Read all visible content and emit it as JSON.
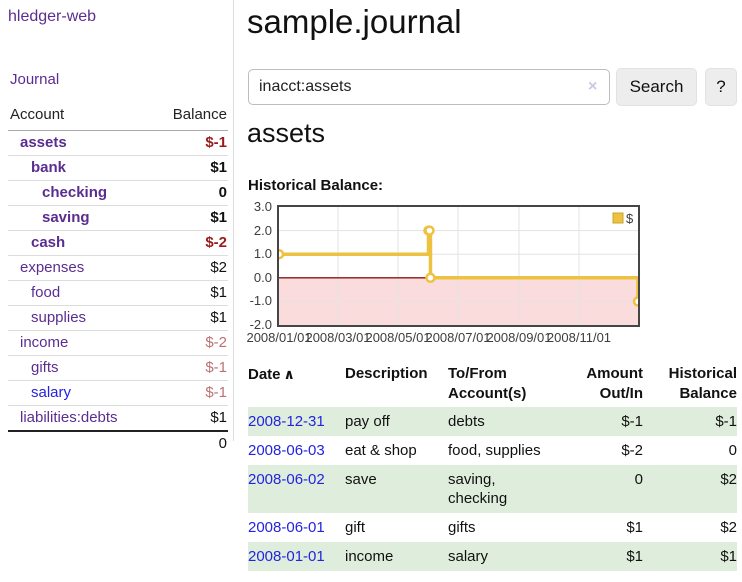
{
  "colors": {
    "link_purple": "#5b2d90",
    "link_blue": "#2323e0",
    "negative_strong": "#9b1b1b",
    "negative_soft": "#bb7272",
    "row_green": "#dfeedc",
    "series_yellow": "#edc240",
    "negative_region_pink": "#fbdcdc",
    "zero_line_red": "#8b1414"
  },
  "icons": {
    "clear": "×",
    "sort_asc": "∧"
  },
  "sidebar": {
    "brand": "hledger-web",
    "nav": [
      {
        "label": "Journal"
      }
    ],
    "accounts": {
      "headers": [
        "Account",
        "Balance"
      ],
      "rows": [
        {
          "account": "assets",
          "balance": "$-1",
          "depth": 0,
          "emph": true
        },
        {
          "account": "bank",
          "balance": "$1",
          "depth": 1,
          "emph": true
        },
        {
          "account": "checking",
          "balance": "0",
          "depth": 2,
          "emph": true
        },
        {
          "account": "saving",
          "balance": "$1",
          "depth": 2,
          "emph": true
        },
        {
          "account": "cash",
          "balance": "$-2",
          "depth": 1,
          "emph": true
        },
        {
          "account": "expenses",
          "balance": "$2",
          "depth": 0
        },
        {
          "account": "food",
          "balance": "$1",
          "depth": 1
        },
        {
          "account": "supplies",
          "balance": "$1",
          "depth": 1
        },
        {
          "account": "income",
          "balance": "$-2",
          "depth": 0
        },
        {
          "account": "gifts",
          "balance": "$-1",
          "depth": 1
        },
        {
          "account": "salary",
          "balance": "$-1",
          "depth": 1,
          "unvisited": true
        },
        {
          "account": "liabilities:debts",
          "balance": "$1",
          "depth": 0
        }
      ],
      "total": "0"
    }
  },
  "header": {
    "title": "sample.journal"
  },
  "search": {
    "value": "inacct:assets",
    "submit_label": "Search",
    "help_label": "?"
  },
  "main": {
    "account_heading": "assets",
    "section_label": "Historical Balance:"
  },
  "chart_data": {
    "type": "line",
    "step": true,
    "title": "Historical Balance",
    "x_start": "2008-01-01",
    "x_end": "2008-12-31",
    "xticks": [
      "2008/01/01",
      "2008/03/01",
      "2008/05/01",
      "2008/07/01",
      "2008/09/01",
      "2008/11/01"
    ],
    "yticks": [
      3.0,
      2.0,
      1.0,
      0.0,
      -1.0,
      -2.0
    ],
    "ylim": [
      -2.0,
      3.0
    ],
    "grid": true,
    "legend_position": "top-right",
    "series": [
      {
        "name": "$",
        "color": "#edc240",
        "points": [
          {
            "x": "2008-01-01",
            "y": 1
          },
          {
            "x": "2008-06-01",
            "y": 2
          },
          {
            "x": "2008-06-02",
            "y": 2
          },
          {
            "x": "2008-06-03",
            "y": 0
          },
          {
            "x": "2008-12-31",
            "y": -1
          }
        ]
      }
    ]
  },
  "register": {
    "columns": [
      "Date",
      "Description",
      "To/From Account(s)",
      "Amount Out/In",
      "Historical Balance"
    ],
    "rows": [
      {
        "date": "2008-12-31",
        "description": "pay off",
        "accounts": "debts",
        "amount": "$-1",
        "balance": "$-1"
      },
      {
        "date": "2008-06-03",
        "description": "eat & shop",
        "accounts": "food, supplies",
        "amount": "$-2",
        "balance": "0"
      },
      {
        "date": "2008-06-02",
        "description": "save",
        "accounts": "saving, checking",
        "amount": "0",
        "balance": "$2"
      },
      {
        "date": "2008-06-01",
        "description": "gift",
        "accounts": "gifts",
        "amount": "$1",
        "balance": "$2"
      },
      {
        "date": "2008-01-01",
        "description": "income",
        "accounts": "salary",
        "amount": "$1",
        "balance": "$1"
      }
    ]
  }
}
